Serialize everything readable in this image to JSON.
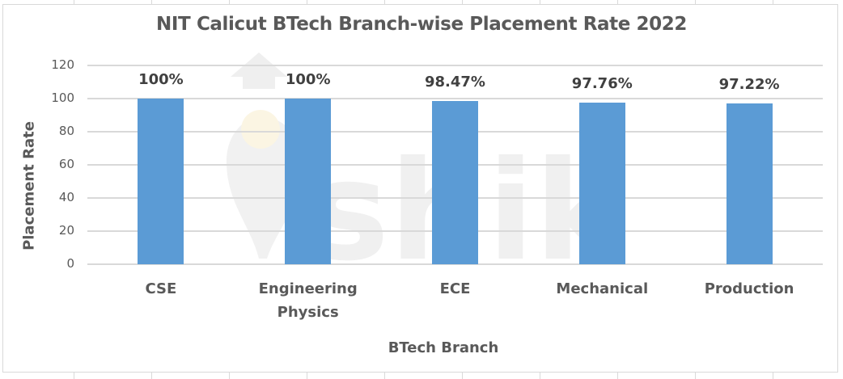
{
  "chart_data": {
    "type": "bar",
    "title": "NIT Calicut BTech Branch-wise Placement Rate 2022",
    "xlabel": "BTech Branch",
    "ylabel": "Placement Rate",
    "categories": [
      "CSE",
      "Engineering Physics",
      "ECE",
      "Mechanical",
      "Production"
    ],
    "category_lines": [
      [
        "CSE"
      ],
      [
        "Engineering",
        "Physics"
      ],
      [
        "ECE"
      ],
      [
        "Mechanical"
      ],
      [
        "Production"
      ]
    ],
    "values": [
      100,
      100,
      98.47,
      97.76,
      97.22
    ],
    "data_labels": [
      "100%",
      "100%",
      "98.47%",
      "97.76%",
      "97.22%"
    ],
    "ylim": [
      0,
      120
    ],
    "yticks": [
      0,
      20,
      40,
      60,
      80,
      100,
      120
    ],
    "grid": true,
    "legend": "none",
    "bar_color": "#5b9bd5",
    "watermark": "shiksha"
  }
}
